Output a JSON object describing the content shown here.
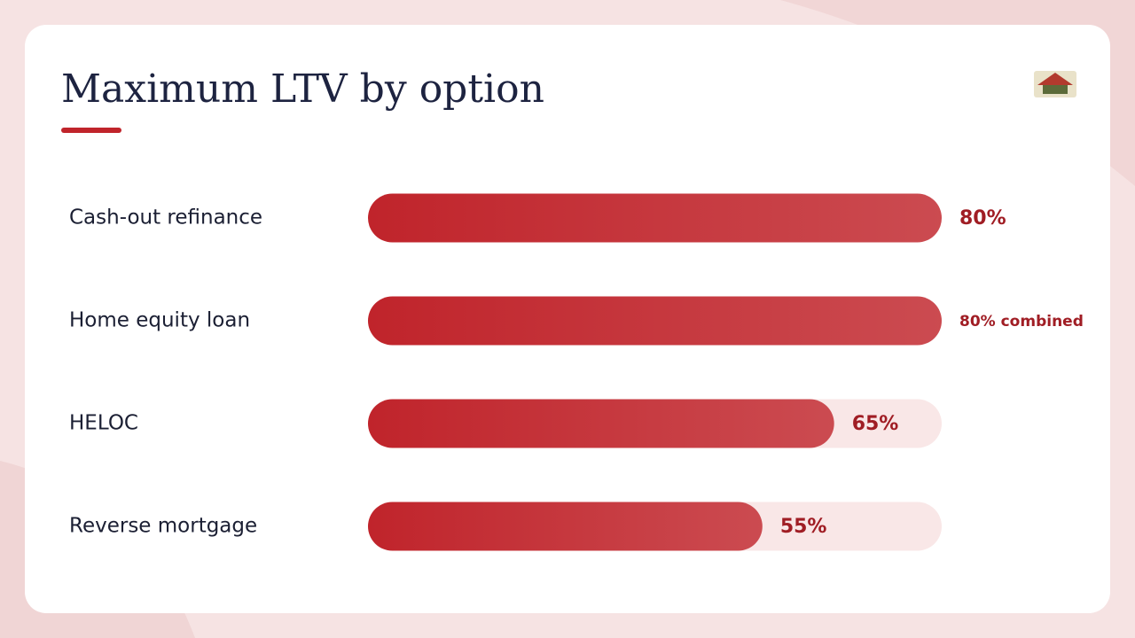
{
  "chart_data": {
    "type": "bar",
    "title": "Maximum LTV by option",
    "categories": [
      "Cash-out refinance",
      "Home equity loan",
      "HELOC",
      "Reverse mortgage"
    ],
    "values": [
      80,
      80,
      65,
      55
    ],
    "value_labels": [
      "80%",
      "80% combined",
      "65%",
      "55%"
    ],
    "xlim": [
      0,
      80
    ],
    "color": "#c0242b"
  }
}
